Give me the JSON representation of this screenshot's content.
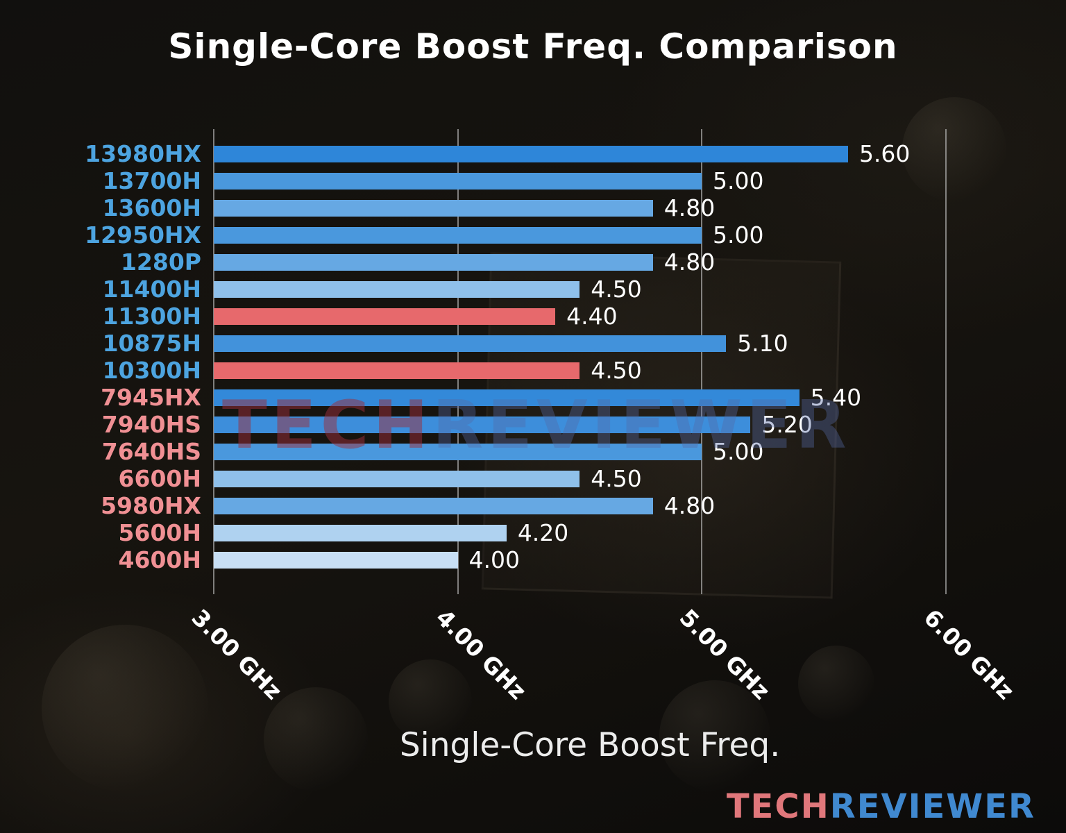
{
  "watermark": {
    "part1": "TECH",
    "part2": "REVIEWER"
  },
  "logo": {
    "part1": "TECH",
    "part2": "REVIEWER"
  },
  "chart_data": {
    "type": "bar",
    "orientation": "horizontal",
    "title": "Single-Core Boost Freq. Comparison",
    "xlabel": "Single-Core Boost Freq.",
    "unit": "GHz",
    "xlim": [
      3.0,
      6.3
    ],
    "grid": true,
    "legend": "none",
    "ticks": [
      {
        "value": 3.0,
        "label": "3.00 GHz"
      },
      {
        "value": 4.0,
        "label": "4.00 GHz"
      },
      {
        "value": 5.0,
        "label": "5.00 GHz"
      },
      {
        "value": 6.0,
        "label": "6.00 GHz"
      }
    ],
    "rows": [
      {
        "name": "13980HX",
        "value": 5.6,
        "value_label": "5.60",
        "label_color": "#4da4e0",
        "bar_color": "#2e86d9"
      },
      {
        "name": "13700H",
        "value": 5.0,
        "value_label": "5.00",
        "label_color": "#4da4e0",
        "bar_color": "#4a98dd"
      },
      {
        "name": "13600H",
        "value": 4.8,
        "value_label": "4.80",
        "label_color": "#4da4e0",
        "bar_color": "#66a8e3"
      },
      {
        "name": "12950HX",
        "value": 5.0,
        "value_label": "5.00",
        "label_color": "#4da4e0",
        "bar_color": "#4a98dd"
      },
      {
        "name": "1280P",
        "value": 4.8,
        "value_label": "4.80",
        "label_color": "#4da4e0",
        "bar_color": "#66a8e3"
      },
      {
        "name": "11400H",
        "value": 4.5,
        "value_label": "4.50",
        "label_color": "#4da4e0",
        "bar_color": "#8fc0ea"
      },
      {
        "name": "11300H",
        "value": 4.4,
        "value_label": "4.40",
        "label_color": "#4da4e0",
        "bar_color": "#e7696c"
      },
      {
        "name": "10875H",
        "value": 5.1,
        "value_label": "5.10",
        "label_color": "#4da4e0",
        "bar_color": "#4292db"
      },
      {
        "name": "10300H",
        "value": 4.5,
        "value_label": "4.50",
        "label_color": "#4da4e0",
        "bar_color": "#e7696c"
      },
      {
        "name": "7945HX",
        "value": 5.4,
        "value_label": "5.40",
        "label_color": "#f09094",
        "bar_color": "#3389d9"
      },
      {
        "name": "7940HS",
        "value": 5.2,
        "value_label": "5.20",
        "label_color": "#f09094",
        "bar_color": "#3d8edb"
      },
      {
        "name": "7640HS",
        "value": 5.0,
        "value_label": "5.00",
        "label_color": "#f09094",
        "bar_color": "#4a98dd"
      },
      {
        "name": "6600H",
        "value": 4.5,
        "value_label": "4.50",
        "label_color": "#f09094",
        "bar_color": "#8fc0ea"
      },
      {
        "name": "5980HX",
        "value": 4.8,
        "value_label": "4.80",
        "label_color": "#f09094",
        "bar_color": "#66a8e3"
      },
      {
        "name": "5600H",
        "value": 4.2,
        "value_label": "4.20",
        "label_color": "#f09094",
        "bar_color": "#afd2f0"
      },
      {
        "name": "4600H",
        "value": 4.0,
        "value_label": "4.00",
        "label_color": "#f09094",
        "bar_color": "#c8dff4"
      }
    ]
  }
}
